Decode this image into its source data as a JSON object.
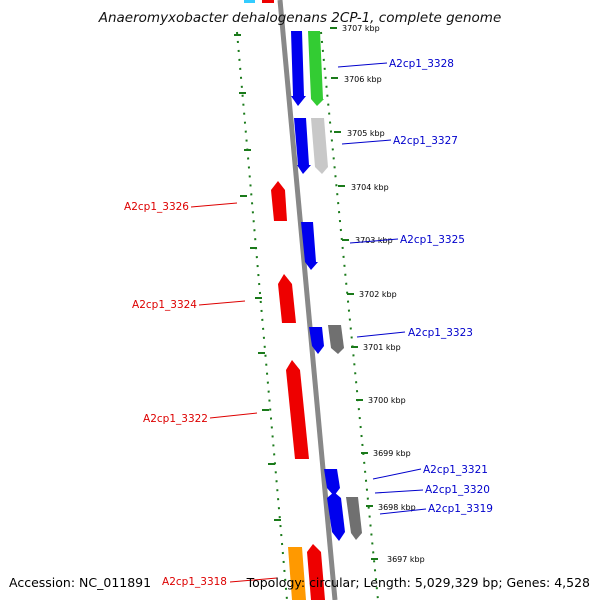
{
  "title": "Anaeromyxobacter dehalogenans 2CP-1, complete genome",
  "accession_label": "Accession:",
  "accession": "NC_011891",
  "topology_label": "Topology:",
  "topology": "circular",
  "length_label": "Length:",
  "length": "5,029,329 bp",
  "genes_label": "Genes:",
  "genes": "4,528",
  "colors": {
    "forward_label": "#0000cc",
    "reverse_label": "#dd0000",
    "backbone": "#888888",
    "ticks": "#1a7a1a",
    "cds_blue": "#0000ee",
    "cds_red": "#ee0000",
    "cds_green": "#33cc33",
    "cds_gray_light": "#c8c8c8",
    "cds_gray_dark": "#707070",
    "cds_orange": "#ff9900",
    "cds_cyan": "#33ccff"
  },
  "kbp_ticks": [
    "3707 kbp",
    "3706 kbp",
    "3705 kbp",
    "3704 kbp",
    "3703 kbp",
    "3702 kbp",
    "3701 kbp",
    "3700 kbp",
    "3699 kbp",
    "3698 kbp",
    "3697 kbp"
  ],
  "genes_forward": [
    "A2cp1_3328",
    "A2cp1_3327",
    "A2cp1_3325",
    "A2cp1_3323",
    "A2cp1_3321",
    "A2cp1_3320",
    "A2cp1_3319"
  ],
  "genes_reverse": [
    "A2cp1_3326",
    "A2cp1_3324",
    "A2cp1_3322",
    "A2cp1_3318"
  ]
}
